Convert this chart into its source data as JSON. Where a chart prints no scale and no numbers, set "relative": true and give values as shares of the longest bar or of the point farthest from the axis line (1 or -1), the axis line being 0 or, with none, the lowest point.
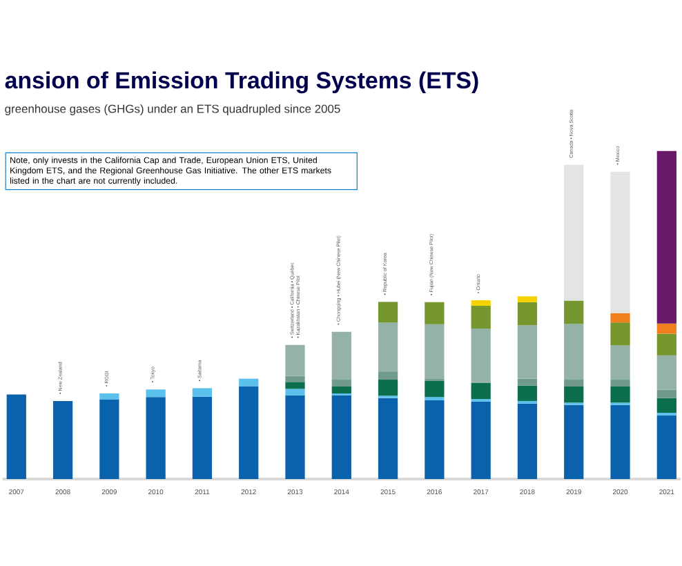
{
  "chart_data": {
    "type": "bar",
    "stacked": true,
    "relative": true,
    "title": "ansion of Emission Trading Systems (ETS)",
    "subtitle": "greenhouse gases (GHGs) under an ETS quadrupled since 2005",
    "categories": [
      "2007",
      "2008",
      "2009",
      "2010",
      "2011",
      "2012",
      "2013",
      "2014",
      "2015",
      "2016",
      "2017",
      "2018",
      "2019",
      "2020",
      "2021"
    ],
    "series": [
      {
        "color": "#0a62ad",
        "values": [
          0.258,
          0.238,
          0.243,
          0.25,
          0.251,
          0.283,
          0.255,
          0.255,
          0.247,
          0.24,
          0.236,
          0.23,
          0.226,
          0.226,
          0.194
        ]
      },
      {
        "color": "#5bc0eb",
        "values": [
          null,
          null,
          0.018,
          0.023,
          0.026,
          0.023,
          0.02,
          0.006,
          0.007,
          0.01,
          0.008,
          0.008,
          0.007,
          0.007,
          0.008
        ]
      },
      {
        "color": "#0b6e4f",
        "values": [
          null,
          null,
          null,
          null,
          null,
          null,
          0.021,
          0.021,
          0.049,
          0.05,
          0.049,
          0.047,
          0.049,
          0.049,
          0.045
        ]
      },
      {
        "color": "#6f9a8d",
        "values": [
          null,
          null,
          null,
          null,
          null,
          null,
          0.018,
          0.021,
          0.025,
          0.005,
          0.003,
          0.021,
          0.021,
          0.021,
          0.025
        ]
      },
      {
        "color": "#94b2a6",
        "values": [
          null,
          null,
          null,
          null,
          null,
          null,
          0.095,
          0.146,
          0.149,
          0.167,
          0.163,
          0.163,
          0.17,
          0.105,
          0.105
        ]
      },
      {
        "color": "#76962e",
        "values": [
          null,
          null,
          null,
          null,
          null,
          null,
          null,
          null,
          0.063,
          0.067,
          0.069,
          0.07,
          0.071,
          0.069,
          0.066
        ]
      },
      {
        "color": "#f5d300",
        "values": [
          null,
          null,
          null,
          null,
          null,
          null,
          null,
          null,
          null,
          null,
          0.017,
          0.018,
          null,
          null,
          null
        ]
      },
      {
        "color": "#f07f1e",
        "values": [
          null,
          null,
          null,
          null,
          null,
          null,
          null,
          null,
          null,
          null,
          null,
          null,
          null,
          0.029,
          0.031
        ]
      },
      {
        "color": "#e4e4e4",
        "values": [
          null,
          null,
          null,
          null,
          null,
          null,
          null,
          null,
          null,
          null,
          null,
          null,
          0.414,
          0.431,
          null
        ]
      },
      {
        "color": "#6b1a6b",
        "values": [
          null,
          null,
          null,
          null,
          null,
          null,
          null,
          null,
          null,
          null,
          null,
          null,
          null,
          null,
          0.526
        ]
      }
    ],
    "annotations": [
      "Note, only invests in the California Cap and Trade, European Union ETS, United Kingdom ETS, and the Regional Greenhouse Gas Initiative. The other ETS markets listed in the chart are not currently included.",
      {
        "text": "• New Zealand",
        "x": "2008",
        "y": 0.238
      },
      {
        "text": "• RGGI",
        "x": "2009",
        "y": 0.261
      },
      {
        "text": "• Tokyo",
        "x": "2010",
        "y": 0.273
      },
      {
        "text": "• Saitama",
        "x": "2011",
        "y": 0.277
      },
      {
        "text": "• Switzerland • California • Québec",
        "x": "2013",
        "y": 0.409
      },
      {
        "text": "• Kazakhstan • Chinese Pilot",
        "x": "2013",
        "y": 0.409
      },
      {
        "text": "• Chongqing • Hubei (New Chinese Pilot)",
        "x": "2014",
        "y": 0.449
      },
      {
        "text": "• Republic of Korea",
        "x": "2015",
        "y": 0.54
      },
      {
        "text": "• Fujian (New Chinese Pilot)",
        "x": "2016",
        "y": 0.539
      },
      {
        "text": "• Ontario",
        "x": "2017",
        "y": 0.545
      },
      {
        "text": "Canada • Nova Scotia",
        "x": "2019",
        "y": 0.958
      },
      {
        "text": "• Mexico",
        "x": "2020",
        "y": 0.937
      }
    ]
  }
}
